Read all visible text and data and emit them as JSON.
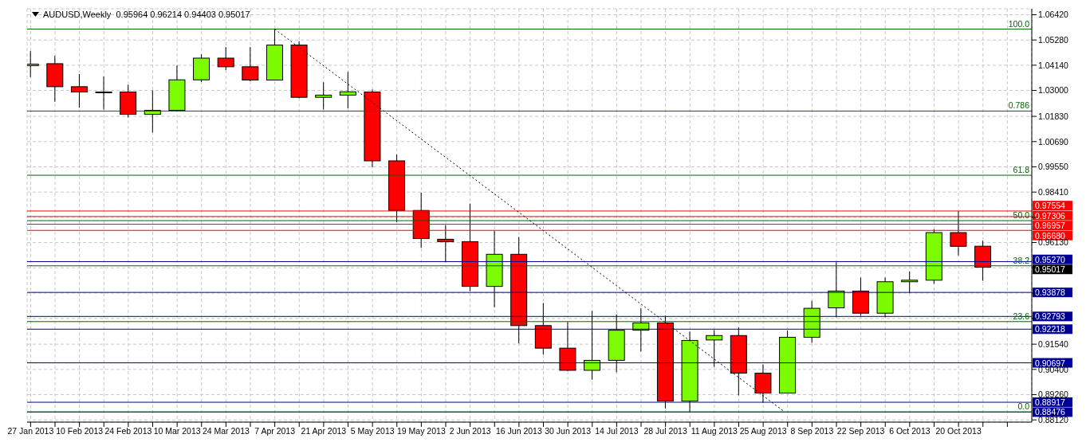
{
  "chart_data": {
    "type": "candlestick",
    "title": "AUDUSD,Weekly  0.95964 0.96214 0.94403 0.95017",
    "x": [
      "2013-01-27",
      "2013-02-03",
      "2013-02-10",
      "2013-02-17",
      "2013-02-24",
      "2013-03-03",
      "2013-03-10",
      "2013-03-17",
      "2013-03-24",
      "2013-03-31",
      "2013-04-07",
      "2013-04-14",
      "2013-04-21",
      "2013-04-28",
      "2013-05-05",
      "2013-05-12",
      "2013-05-19",
      "2013-05-26",
      "2013-06-02",
      "2013-06-09",
      "2013-06-16",
      "2013-06-23",
      "2013-06-30",
      "2013-07-07",
      "2013-07-14",
      "2013-07-21",
      "2013-07-28",
      "2013-08-04",
      "2013-08-11",
      "2013-08-18",
      "2013-08-25",
      "2013-09-01",
      "2013-09-08",
      "2013-09-15",
      "2013-09-22",
      "2013-09-29",
      "2013-10-06",
      "2013-10-13",
      "2013-10-20",
      "2013-10-27"
    ],
    "ohlc": [
      [
        1.0412,
        1.0478,
        1.036,
        1.0419
      ],
      [
        1.0421,
        1.0456,
        1.0249,
        1.0317
      ],
      [
        1.0317,
        1.0374,
        1.0222,
        1.0293
      ],
      [
        1.0293,
        1.0363,
        1.0214,
        1.0293
      ],
      [
        1.0293,
        1.0326,
        1.0178,
        1.0192
      ],
      [
        1.0192,
        1.03,
        1.011,
        1.021
      ],
      [
        1.021,
        1.0413,
        1.0205,
        1.0348
      ],
      [
        1.0348,
        1.0463,
        1.0338,
        1.0446
      ],
      [
        1.0446,
        1.0496,
        1.0392,
        1.0407
      ],
      [
        1.0407,
        1.0496,
        1.0342,
        1.0347
      ],
      [
        1.0347,
        1.0577,
        1.0346,
        1.0505
      ],
      [
        1.0505,
        1.0523,
        1.0265,
        1.0269
      ],
      [
        1.0269,
        1.0337,
        1.0214,
        1.0279
      ],
      [
        1.0279,
        1.0384,
        1.0219,
        1.0294
      ],
      [
        1.0293,
        1.0304,
        0.9954,
        0.9982
      ],
      [
        0.9982,
        1.001,
        0.9706,
        0.9758
      ],
      [
        0.9758,
        0.9839,
        0.9589,
        0.9631
      ],
      [
        0.9628,
        0.9692,
        0.9524,
        0.9617
      ],
      [
        0.9617,
        0.9789,
        0.9393,
        0.9415
      ],
      [
        0.9415,
        0.9666,
        0.9321,
        0.956
      ],
      [
        0.956,
        0.9638,
        0.9157,
        0.9238
      ],
      [
        0.9238,
        0.934,
        0.9108,
        0.9136
      ],
      [
        0.9136,
        0.9254,
        0.9033,
        0.9036
      ],
      [
        0.9036,
        0.9304,
        0.8994,
        0.9081
      ],
      [
        0.9081,
        0.9289,
        0.9027,
        0.9217
      ],
      [
        0.9217,
        0.9316,
        0.9121,
        0.925
      ],
      [
        0.925,
        0.9282,
        0.8864,
        0.8897
      ],
      [
        0.8897,
        0.9211,
        0.8848,
        0.9171
      ],
      [
        0.9173,
        0.9218,
        0.9052,
        0.9193
      ],
      [
        0.9193,
        0.9229,
        0.8923,
        0.9023
      ],
      [
        0.9023,
        0.9063,
        0.8889,
        0.8933
      ],
      [
        0.8933,
        0.9216,
        0.8933,
        0.9185
      ],
      [
        0.9185,
        0.935,
        0.916,
        0.9316
      ],
      [
        0.9318,
        0.9524,
        0.9276,
        0.9394
      ],
      [
        0.9394,
        0.9455,
        0.9282,
        0.9294
      ],
      [
        0.9294,
        0.9455,
        0.9276,
        0.9436
      ],
      [
        0.9436,
        0.9482,
        0.9384,
        0.9443
      ],
      [
        0.9443,
        0.9673,
        0.9427,
        0.9658
      ],
      [
        0.9658,
        0.9755,
        0.9555,
        0.9596
      ],
      [
        0.95964,
        0.96214,
        0.94403,
        0.95017
      ]
    ],
    "colors": [
      "#7cfc00",
      "#ff0000",
      "#ff0000",
      "#000000",
      "#ff0000",
      "#7cfc00",
      "#7cfc00",
      "#7cfc00",
      "#ff0000",
      "#ff0000",
      "#7cfc00",
      "#ff0000",
      "#7cfc00",
      "#7cfc00",
      "#ff0000",
      "#ff0000",
      "#ff0000",
      "#ff0000",
      "#ff0000",
      "#7cfc00",
      "#ff0000",
      "#ff0000",
      "#ff0000",
      "#7cfc00",
      "#7cfc00",
      "#7cfc00",
      "#ff0000",
      "#7cfc00",
      "#7cfc00",
      "#ff0000",
      "#ff0000",
      "#7cfc00",
      "#7cfc00",
      "#7cfc00",
      "#ff0000",
      "#7cfc00",
      "#7cfc00",
      "#7cfc00",
      "#ff0000",
      "#ff0000"
    ],
    "series": [
      {
        "type": "line",
        "color": "#000000",
        "line_style": "dotted",
        "x": [
          "2013-04-07",
          "2013-08-31"
        ],
        "values": [
          1.0577,
          0.885
        ]
      }
    ],
    "xlim": [
      "2013-01-26",
      "2013-11-10"
    ],
    "xticks": [
      {
        "value": "2013-01-27",
        "label": "27 Jan 2013"
      },
      {
        "value": "2013-02-03",
        "label": null
      },
      {
        "value": "2013-02-10",
        "label": "10 Feb 2013"
      },
      {
        "value": "2013-02-17",
        "label": null
      },
      {
        "value": "2013-02-24",
        "label": "24 Feb 2013"
      },
      {
        "value": "2013-03-03",
        "label": null
      },
      {
        "value": "2013-03-10",
        "label": "10 Mar 2013"
      },
      {
        "value": "2013-03-17",
        "label": null
      },
      {
        "value": "2013-03-24",
        "label": "24 Mar 2013"
      },
      {
        "value": "2013-03-31",
        "label": null
      },
      {
        "value": "2013-04-07",
        "label": "7 Apr 2013"
      },
      {
        "value": "2013-04-14",
        "label": null
      },
      {
        "value": "2013-04-21",
        "label": "21 Apr 2013"
      },
      {
        "value": "2013-04-28",
        "label": null
      },
      {
        "value": "2013-05-05",
        "label": "5 May 2013"
      },
      {
        "value": "2013-05-12",
        "label": null
      },
      {
        "value": "2013-05-19",
        "label": "19 May 2013"
      },
      {
        "value": "2013-05-26",
        "label": null
      },
      {
        "value": "2013-06-02",
        "label": "2 Jun 2013"
      },
      {
        "value": "2013-06-09",
        "label": null
      },
      {
        "value": "2013-06-16",
        "label": "16 Jun 2013"
      },
      {
        "value": "2013-06-23",
        "label": null
      },
      {
        "value": "2013-06-30",
        "label": "30 Jun 2013"
      },
      {
        "value": "2013-07-07",
        "label": null
      },
      {
        "value": "2013-07-14",
        "label": "14 Jul 2013"
      },
      {
        "value": "2013-07-21",
        "label": null
      },
      {
        "value": "2013-07-28",
        "label": "28 Jul 2013"
      },
      {
        "value": "2013-08-04",
        "label": null
      },
      {
        "value": "2013-08-11",
        "label": "11 Aug 2013"
      },
      {
        "value": "2013-08-18",
        "label": null
      },
      {
        "value": "2013-08-25",
        "label": "25 Aug 2013"
      },
      {
        "value": "2013-09-01",
        "label": null
      },
      {
        "value": "2013-09-08",
        "label": "8 Sep 2013"
      },
      {
        "value": "2013-09-15",
        "label": null
      },
      {
        "value": "2013-09-22",
        "label": "22 Sep 2013"
      },
      {
        "value": "2013-09-29",
        "label": null
      },
      {
        "value": "2013-10-06",
        "label": "6 Oct 2013"
      },
      {
        "value": "2013-10-13",
        "label": null
      },
      {
        "value": "2013-10-20",
        "label": "20 Oct 2013"
      },
      {
        "value": "2013-10-27",
        "label": null
      },
      {
        "value": "2013-11-03",
        "label": null
      }
    ],
    "ylim": [
      0.8802,
      1.0669
    ],
    "yticks": [
      {
        "value": 1.0642,
        "label": "1.06420"
      },
      {
        "value": 1.0528,
        "label": "1.05280"
      },
      {
        "value": 1.0414,
        "label": "1.04140"
      },
      {
        "value": 1.03,
        "label": "1.03000"
      },
      {
        "value": 1.0183,
        "label": "1.01830"
      },
      {
        "value": 1.0069,
        "label": "1.00690"
      },
      {
        "value": 0.9955,
        "label": "0.99550"
      },
      {
        "value": 0.9841,
        "label": "0.98410"
      },
      {
        "value": 0.9727,
        "label": null
      },
      {
        "value": 0.9613,
        "label": "0.96130"
      },
      {
        "value": 0.9499,
        "label": null
      },
      {
        "value": 0.9385,
        "label": null
      },
      {
        "value": 0.927,
        "label": null
      },
      {
        "value": 0.9154,
        "label": "0.91540"
      },
      {
        "value": 0.904,
        "label": "0.90400"
      },
      {
        "value": 0.8926,
        "label": "0.89260"
      },
      {
        "value": 0.8812,
        "label": "0.88120"
      }
    ],
    "grid": true,
    "ref_lines": [
      {
        "axis": "y",
        "value": 0.97554,
        "label": "0.97554",
        "color": "#ff0000"
      },
      {
        "axis": "y",
        "value": 0.97306,
        "label": "0.97306",
        "color": "#ff0000"
      },
      {
        "axis": "y",
        "value": 0.96957,
        "label": "0.96957",
        "color": "#ff0000"
      },
      {
        "axis": "y",
        "value": 0.9668,
        "label": "0.96680",
        "color": "#ff0000"
      },
      {
        "axis": "y",
        "value": 0.9527,
        "label": "0.95270",
        "color": "#000099"
      },
      {
        "axis": "y",
        "value": 0.93878,
        "label": "0.93878",
        "color": "#000099"
      },
      {
        "axis": "y",
        "value": 0.92793,
        "label": "0.92793",
        "color": "#000099"
      },
      {
        "axis": "y",
        "value": 0.92218,
        "label": "0.92218",
        "color": "#000099"
      },
      {
        "axis": "y",
        "value": 0.90697,
        "label": "0.90697",
        "color": "#000099"
      },
      {
        "axis": "y",
        "value": 0.88917,
        "label": "0.88917",
        "color": "#000099"
      },
      {
        "axis": "y",
        "value": 0.88476,
        "label": "0.88476",
        "color": "#000099"
      },
      {
        "axis": "y",
        "value": 1.0577,
        "color": "#006400"
      },
      {
        "axis": "y",
        "value": 1.0207,
        "color": "#006400"
      },
      {
        "axis": "y",
        "value": 0.9917,
        "color": "#006400"
      },
      {
        "axis": "y",
        "value": 0.9712,
        "color": "#006400"
      },
      {
        "axis": "y",
        "value": 0.9508,
        "color": "#006400"
      },
      {
        "axis": "y",
        "value": 0.9256,
        "color": "#006400"
      },
      {
        "axis": "y",
        "value": 0.8848,
        "color": "#006400"
      }
    ],
    "annotations": [
      {
        "text": "100.0",
        "y": 1.0577
      },
      {
        "text": "0.786",
        "y": 1.0207
      },
      {
        "text": "61.8",
        "y": 0.9917
      },
      {
        "text": "50.0",
        "y": 0.9712
      },
      {
        "text": "38.2",
        "y": 0.9508
      },
      {
        "text": "23.6",
        "y": 0.9256
      },
      {
        "text": "0.0",
        "y": 0.8848
      },
      "0.95017"
    ]
  }
}
